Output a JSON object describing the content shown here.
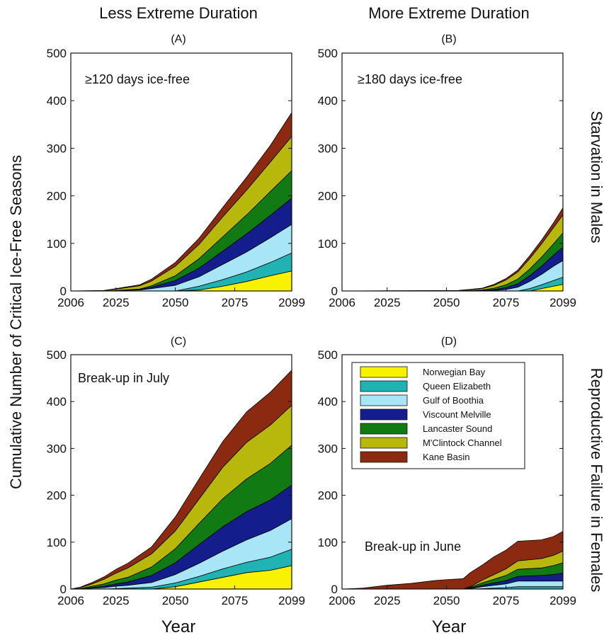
{
  "column_titles": [
    "Less Extreme Duration",
    "More Extreme Duration"
  ],
  "row_titles": [
    "Starvation in Males",
    "Reproductive Failure in Females"
  ],
  "ylabel": "Cumulative Number of Critical Ice-Free Seasons",
  "xlabel": "Year",
  "legend": [
    {
      "name": "Norwegian Bay",
      "color": "#f8f200"
    },
    {
      "name": "Queen Elizabeth",
      "color": "#1fb3b3"
    },
    {
      "name": "Gulf of Boothia",
      "color": "#a8e6f7"
    },
    {
      "name": "Viscount Melville",
      "color": "#141d8c"
    },
    {
      "name": "Lancaster Sound",
      "color": "#127a12"
    },
    {
      "name": "M'Clintock Channel",
      "color": "#b8b80c"
    },
    {
      "name": "Kane Basin",
      "color": "#8b2a10"
    }
  ],
  "chart_data": [
    {
      "type": "area",
      "stacked": true,
      "panel_label": "(A)",
      "annotation": "≥120 days ice-free",
      "x": [
        2006,
        2020,
        2025,
        2035,
        2040,
        2050,
        2060,
        2070,
        2080,
        2090,
        2099
      ],
      "xticks": [
        2006,
        2025,
        2050,
        2075,
        2099
      ],
      "yticks": [
        0,
        100,
        200,
        300,
        400,
        500
      ],
      "ylim": [
        0,
        500
      ],
      "series": [
        {
          "name": "Norwegian Bay",
          "values": [
            0,
            0,
            0,
            0,
            0,
            0,
            2,
            10,
            20,
            32,
            42
          ]
        },
        {
          "name": "Queen Elizabeth",
          "values": [
            0,
            0,
            0,
            0,
            0,
            0,
            8,
            14,
            20,
            28,
            38
          ]
        },
        {
          "name": "Gulf of Boothia",
          "values": [
            0,
            0,
            1,
            2,
            5,
            12,
            20,
            32,
            42,
            52,
            60
          ]
        },
        {
          "name": "Viscount Melville",
          "values": [
            0,
            0,
            0,
            1,
            3,
            10,
            18,
            28,
            38,
            47,
            55
          ]
        },
        {
          "name": "Lancaster Sound",
          "values": [
            0,
            0,
            0,
            1,
            3,
            10,
            20,
            30,
            40,
            50,
            58
          ]
        },
        {
          "name": "M'Clintock Channel",
          "values": [
            0,
            1,
            3,
            7,
            10,
            20,
            30,
            42,
            52,
            62,
            72
          ]
        },
        {
          "name": "Kane Basin",
          "values": [
            0,
            0,
            1,
            2,
            4,
            8,
            13,
            20,
            27,
            35,
            50
          ]
        }
      ]
    },
    {
      "type": "area",
      "stacked": true,
      "panel_label": "(B)",
      "annotation": "≥180 days ice-free",
      "x": [
        2006,
        2055,
        2065,
        2070,
        2075,
        2080,
        2085,
        2090,
        2095,
        2099
      ],
      "xticks": [
        2006,
        2025,
        2050,
        2075,
        2099
      ],
      "yticks": [
        0,
        100,
        200,
        300,
        400,
        500
      ],
      "ylim": [
        0,
        500
      ],
      "series": [
        {
          "name": "Norwegian Bay",
          "values": [
            0,
            0,
            0,
            0,
            0,
            0,
            0,
            5,
            10,
            14
          ]
        },
        {
          "name": "Queen Elizabeth",
          "values": [
            0,
            0,
            0,
            0,
            0,
            0,
            5,
            8,
            12,
            15
          ]
        },
        {
          "name": "Gulf of Boothia",
          "values": [
            0,
            0,
            0,
            1,
            3,
            8,
            15,
            22,
            30,
            35
          ]
        },
        {
          "name": "Viscount Melville",
          "values": [
            0,
            0,
            1,
            2,
            4,
            7,
            12,
            17,
            23,
            28
          ]
        },
        {
          "name": "Lancaster Sound",
          "values": [
            0,
            0,
            1,
            3,
            6,
            10,
            14,
            19,
            24,
            30
          ]
        },
        {
          "name": "M'Clintock Channel",
          "values": [
            0,
            1,
            3,
            6,
            10,
            15,
            22,
            28,
            34,
            38
          ]
        },
        {
          "name": "Kane Basin",
          "values": [
            0,
            0,
            1,
            2,
            3,
            4,
            6,
            8,
            10,
            15
          ]
        }
      ]
    },
    {
      "type": "area",
      "stacked": true,
      "panel_label": "(C)",
      "annotation": "Break-up in July",
      "x": [
        2006,
        2010,
        2015,
        2020,
        2025,
        2030,
        2040,
        2050,
        2060,
        2070,
        2080,
        2090,
        2099
      ],
      "xticks": [
        2006,
        2025,
        2050,
        2075,
        2099
      ],
      "yticks": [
        0,
        100,
        200,
        300,
        400,
        500
      ],
      "ylim": [
        0,
        500
      ],
      "series": [
        {
          "name": "Norwegian Bay",
          "values": [
            0,
            0,
            0,
            0,
            0,
            0,
            0,
            5,
            15,
            25,
            35,
            40,
            50
          ]
        },
        {
          "name": "Queen Elizabeth",
          "values": [
            0,
            0,
            0,
            0,
            1,
            2,
            4,
            8,
            12,
            18,
            22,
            28,
            35
          ]
        },
        {
          "name": "Gulf of Boothia",
          "values": [
            0,
            0,
            2,
            3,
            5,
            6,
            10,
            18,
            28,
            38,
            48,
            57,
            65
          ]
        },
        {
          "name": "Viscount Melville",
          "values": [
            0,
            0,
            1,
            3,
            5,
            7,
            15,
            25,
            40,
            52,
            60,
            65,
            72
          ]
        },
        {
          "name": "Lancaster Sound",
          "values": [
            0,
            1,
            3,
            5,
            8,
            10,
            18,
            30,
            45,
            60,
            70,
            78,
            85
          ]
        },
        {
          "name": "M'Clintock Channel",
          "values": [
            0,
            2,
            5,
            10,
            15,
            20,
            28,
            38,
            52,
            67,
            78,
            82,
            85
          ]
        },
        {
          "name": "Kane Basin",
          "values": [
            0,
            1,
            3,
            5,
            8,
            10,
            15,
            30,
            43,
            55,
            65,
            70,
            75
          ]
        }
      ]
    },
    {
      "type": "area",
      "stacked": true,
      "panel_label": "(D)",
      "annotation": "Break-up in June",
      "x": [
        2006,
        2015,
        2025,
        2035,
        2045,
        2050,
        2057,
        2060,
        2065,
        2070,
        2075,
        2080,
        2090,
        2095,
        2099
      ],
      "xticks": [
        2006,
        2025,
        2050,
        2075,
        2099
      ],
      "yticks": [
        0,
        100,
        200,
        300,
        400,
        500
      ],
      "ylim": [
        0,
        500
      ],
      "series": [
        {
          "name": "Norwegian Bay",
          "values": [
            0,
            0,
            0,
            0,
            0,
            0,
            0,
            0,
            0,
            0,
            0,
            0,
            0,
            0,
            0
          ]
        },
        {
          "name": "Queen Elizabeth",
          "values": [
            0,
            0,
            0,
            0,
            0,
            0,
            0,
            0,
            1,
            2,
            3,
            5,
            5,
            5,
            5
          ]
        },
        {
          "name": "Gulf of Boothia",
          "values": [
            0,
            0,
            0,
            0,
            0,
            0,
            0,
            1,
            4,
            6,
            8,
            12,
            12,
            12,
            12
          ]
        },
        {
          "name": "Viscount Melville",
          "values": [
            0,
            0,
            0,
            0,
            0,
            0,
            0,
            1,
            3,
            5,
            7,
            10,
            12,
            14,
            17
          ]
        },
        {
          "name": "Lancaster Sound",
          "values": [
            0,
            0,
            0,
            0,
            0,
            0,
            0,
            2,
            5,
            8,
            11,
            15,
            16,
            19,
            22
          ]
        },
        {
          "name": "M'Clintock Channel",
          "values": [
            0,
            0,
            0,
            0,
            0,
            0,
            0,
            1,
            6,
            10,
            14,
            18,
            20,
            22,
            25
          ]
        },
        {
          "name": "Kane Basin",
          "values": [
            0,
            2,
            8,
            12,
            18,
            20,
            22,
            30,
            32,
            38,
            40,
            42,
            40,
            40,
            42
          ]
        }
      ]
    }
  ]
}
